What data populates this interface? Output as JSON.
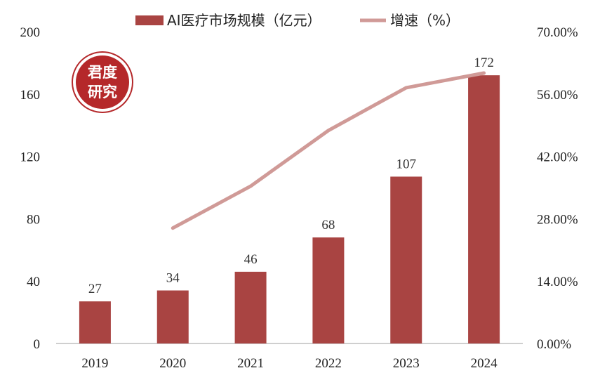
{
  "chart_data": {
    "type": "bar",
    "categories": [
      "2019",
      "2020",
      "2021",
      "2022",
      "2023",
      "2024"
    ],
    "series": [
      {
        "name": "AI医疗市场规模（亿元）",
        "type": "bar",
        "axis": "left",
        "color": "#a94442",
        "values": [
          27,
          34,
          46,
          68,
          107,
          172
        ],
        "data_labels": [
          "27",
          "34",
          "46",
          "68",
          "107",
          "172"
        ]
      },
      {
        "name": "增速（%）",
        "type": "line",
        "axis": "right",
        "color": "#d09a97",
        "values": [
          null,
          25.9,
          35.3,
          47.8,
          57.4,
          60.7
        ]
      }
    ],
    "y_left": {
      "range": [
        0,
        200
      ],
      "ticks": [
        "0",
        "40",
        "80",
        "120",
        "160",
        "200"
      ]
    },
    "y_right": {
      "range": [
        0,
        70
      ],
      "ticks": [
        "0.00%",
        "14.00%",
        "28.00%",
        "42.00%",
        "56.00%",
        "70.00%"
      ]
    },
    "legend_position": "top-center",
    "grid": false
  },
  "watermark": {
    "line1": "君度",
    "line2": "研究",
    "color": "#b5282a"
  }
}
